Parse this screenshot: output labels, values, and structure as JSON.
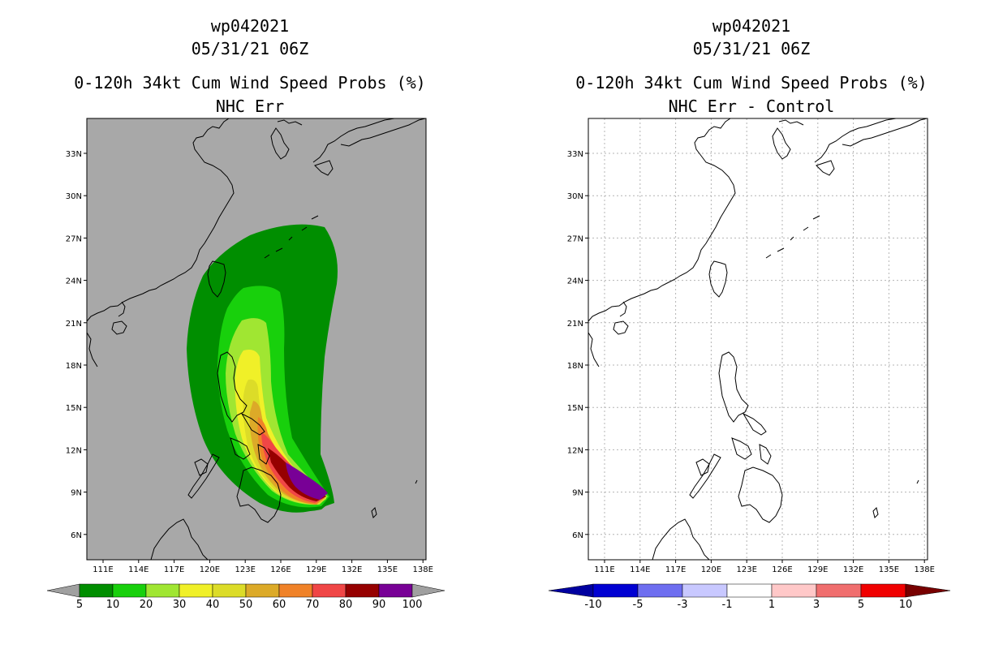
{
  "left_panel": {
    "storm_id": "wp042021",
    "datetime": "05/31/21 06Z",
    "product": "0-120h 34kt Cum Wind Speed Probs (%)",
    "subtitle": "NHC Err",
    "colorbar": {
      "labels": [
        "5",
        "10",
        "20",
        "30",
        "40",
        "50",
        "60",
        "70",
        "80",
        "90",
        "100"
      ],
      "colors": [
        "#008e00",
        "#18d00c",
        "#a0e632",
        "#f0f028",
        "#dcdc28",
        "#dcaa28",
        "#f08228",
        "#f04646",
        "#960000",
        "#780096"
      ],
      "end_color": "#a0a0a0"
    }
  },
  "right_panel": {
    "storm_id": "wp042021",
    "datetime": "05/31/21 06Z",
    "product": "0-120h 34kt Cum Wind Speed Probs (%)",
    "subtitle": "NHC Err - Control",
    "colorbar": {
      "labels": [
        "-10",
        "-5",
        "-3",
        "-1",
        "1",
        "3",
        "5",
        "10"
      ],
      "colors": [
        "#0000d2",
        "#6e6ef0",
        "#c8c8ff",
        "#ffffff",
        "#ffc8c8",
        "#f06e6e",
        "#f00000"
      ],
      "left_end_color": "#0000a0",
      "right_end_color": "#780000"
    }
  },
  "map": {
    "lat_labels": [
      "33N",
      "30N",
      "27N",
      "24N",
      "21N",
      "18N",
      "15N",
      "12N",
      "9N",
      "6N"
    ],
    "lon_labels": [
      "111E",
      "114E",
      "117E",
      "120E",
      "123E",
      "126E",
      "129E",
      "132E",
      "135E",
      "138E"
    ]
  },
  "colors": {
    "land_outline": "#000000",
    "grid": "#b4b4b4",
    "no_data": "#a8a8a8"
  }
}
